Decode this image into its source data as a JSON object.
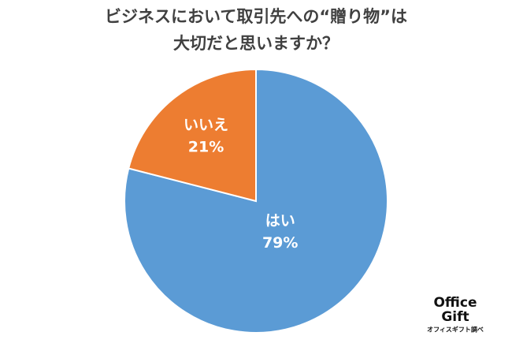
{
  "chart_data": {
    "type": "pie",
    "title": [
      "ビジネスにおいて取引先への“贈り物”は",
      "大切だと思いますか？"
    ],
    "categories": [
      "はい",
      "いいえ"
    ],
    "values": [
      79,
      21
    ],
    "value_labels": [
      "79%",
      "21%"
    ],
    "colors": [
      "#5b9bd5",
      "#ed7d31"
    ],
    "source": {
      "logo": [
        "Office",
        "Gift"
      ],
      "note": "オフィスギフト調べ"
    }
  }
}
